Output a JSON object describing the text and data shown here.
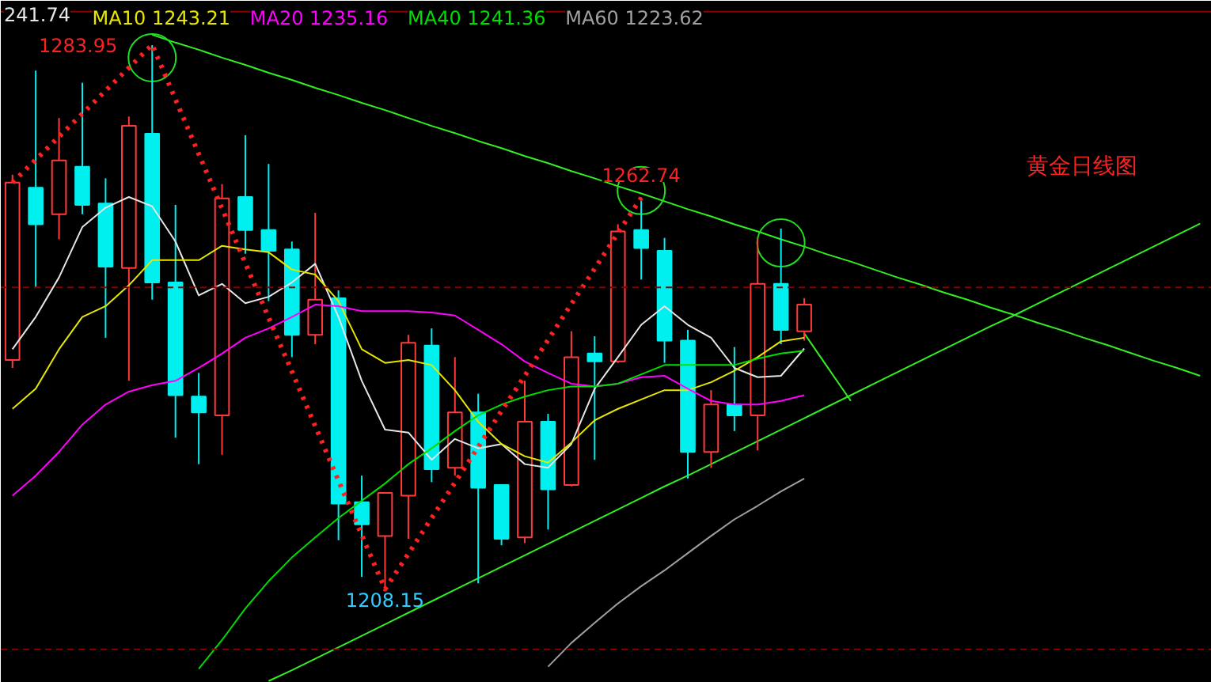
{
  "chart_data": {
    "type": "candlestick",
    "title": "黄金日线图",
    "categories": [
      null,
      null,
      null,
      null,
      null,
      null,
      null,
      null,
      null,
      null,
      null,
      null,
      null,
      null,
      null,
      null,
      null,
      null,
      null,
      null,
      null,
      null,
      null,
      null,
      null,
      null,
      null,
      null,
      null,
      null,
      null,
      null,
      null,
      null,
      null,
      null,
      null,
      null,
      null,
      null,
      null,
      null,
      null,
      null,
      null,
      null,
      null,
      null,
      null,
      null,
      null,
      null
    ],
    "ohlc": [
      [
        1240.1,
        1265.9,
        1239.0,
        1264.8
      ],
      [
        1264.1,
        1280.4,
        1250.2,
        1259.0
      ],
      [
        1260.4,
        1273.8,
        1256.9,
        1267.9
      ],
      [
        1267.0,
        1278.7,
        1260.4,
        1261.7
      ],
      [
        1261.9,
        1265.4,
        1243.2,
        1253.1
      ],
      [
        1252.9,
        1274.0,
        1237.2,
        1272.7
      ],
      [
        1271.6,
        1283.95,
        1248.5,
        1250.9
      ],
      [
        1250.9,
        1261.7,
        1229.3,
        1235.2
      ],
      [
        1235.0,
        1238.3,
        1225.6,
        1232.8
      ],
      [
        1232.4,
        1264.6,
        1226.9,
        1262.6
      ],
      [
        1262.8,
        1271.4,
        1254.9,
        1258.2
      ],
      [
        1258.2,
        1267.4,
        1248.3,
        1255.3
      ],
      [
        1255.5,
        1256.6,
        1240.5,
        1243.6
      ],
      [
        1243.6,
        1260.6,
        1242.3,
        1248.5
      ],
      [
        1248.7,
        1249.8,
        1215.0,
        1220.1
      ],
      [
        1220.3,
        1224.0,
        1209.9,
        1217.2
      ],
      [
        1215.6,
        1221.6,
        1208.15,
        1221.6
      ],
      [
        1221.2,
        1243.6,
        1215.2,
        1242.5
      ],
      [
        1242.1,
        1244.5,
        1223.1,
        1224.9
      ],
      [
        1225.1,
        1240.5,
        1224.0,
        1232.8
      ],
      [
        1232.8,
        1235.4,
        1209.0,
        1222.3
      ],
      [
        1222.7,
        1222.7,
        1214.3,
        1215.2
      ],
      [
        1215.4,
        1237.2,
        1214.6,
        1231.5
      ],
      [
        1231.5,
        1232.6,
        1216.5,
        1222.1
      ],
      [
        1222.7,
        1244.1,
        1222.5,
        1240.5
      ],
      [
        1241.0,
        1243.4,
        1226.2,
        1239.9
      ],
      [
        1239.9,
        1259.0,
        1239.7,
        1258.0
      ],
      [
        1258.2,
        1262.74,
        1251.3,
        1255.7
      ],
      [
        1255.3,
        1257.1,
        1239.7,
        1242.8
      ],
      [
        1242.8,
        1244.3,
        1223.6,
        1227.3
      ],
      [
        1227.3,
        1235.9,
        1225.1,
        1233.9
      ],
      [
        1233.9,
        1241.9,
        1230.2,
        1232.4
      ],
      [
        1232.4,
        1257.1,
        1227.5,
        1250.7
      ],
      [
        1250.7,
        1258.4,
        1242.3,
        1244.3
      ],
      [
        1244.1,
        1248.7,
        1242.8,
        1247.8
      ],
      null,
      null,
      null,
      null,
      null,
      null,
      null,
      null,
      null,
      null,
      null,
      null,
      null,
      null,
      null,
      null,
      null
    ],
    "colors": [
      "#ff3a3a",
      "#00f0f0",
      "#ff3a3a",
      "#00f0f0",
      "#00f0f0",
      "#ff3a3a",
      "#00f0f0",
      "#00f0f0",
      "#00f0f0",
      "#ff3a3a",
      "#00f0f0",
      "#00f0f0",
      "#00f0f0",
      "#ff3a3a",
      "#00f0f0",
      "#00f0f0",
      "#ff3a3a",
      "#ff3a3a",
      "#00f0f0",
      "#ff3a3a",
      "#00f0f0",
      "#00f0f0",
      "#ff3a3a",
      "#00f0f0",
      "#ff3a3a",
      "#00f0f0",
      "#ff3a3a",
      "#00f0f0",
      "#00f0f0",
      "#00f0f0",
      "#ff3a3a",
      "#00f0f0",
      "#ff3a3a",
      "#00f0f0",
      "#ff3a3a",
      null,
      null,
      null,
      null,
      null,
      null,
      null,
      null,
      null,
      null,
      null,
      null,
      null,
      null,
      null,
      null,
      null
    ],
    "ylim": [
      1195.15,
      1290.12
    ],
    "tick_labels": false,
    "grid": false,
    "legend": "top left",
    "series": [
      {
        "name": "241.74",
        "type": "line",
        "color": "#e6e6e6",
        "values": [
          1241.6,
          1246.1,
          1251.6,
          1258.6,
          1261.3,
          1262.8,
          1261.5,
          1256.6,
          1249.1,
          1250.7,
          1248.0,
          1248.9,
          1250.9,
          1253.5,
          1246.1,
          1237.2,
          1230.4,
          1230.0,
          1226.2,
          1229.1,
          1227.8,
          1228.4,
          1225.6,
          1225.1,
          1228.4,
          1236.1,
          1240.5,
          1245.0,
          1247.6,
          1245.0,
          1243.2,
          1239.0,
          1237.7,
          1237.9,
          1241.7,
          null,
          null,
          null,
          null,
          null,
          null,
          null,
          null,
          null,
          null,
          null,
          null,
          null,
          null,
          null,
          null,
          null
        ]
      },
      {
        "name": "MA10 1243.21",
        "type": "line",
        "color": "#e6e600",
        "values": [
          1233.3,
          1236.1,
          1241.6,
          1246.1,
          1247.6,
          1250.5,
          1254.0,
          1254.0,
          1254.0,
          1256.0,
          1255.5,
          1255.1,
          1252.7,
          1252.0,
          1248.3,
          1241.6,
          1239.7,
          1240.1,
          1239.4,
          1235.9,
          1231.5,
          1228.4,
          1226.7,
          1225.8,
          1228.6,
          1231.7,
          1233.3,
          1234.6,
          1235.9,
          1235.9,
          1237.0,
          1238.6,
          1240.5,
          1242.7,
          1243.2,
          null,
          null,
          null,
          null,
          null,
          null,
          null,
          null,
          null,
          null,
          null,
          null,
          null,
          null,
          null,
          null,
          null
        ]
      },
      {
        "name": "MA20 1235.16",
        "type": "line",
        "color": "#ff00ff",
        "values": [
          1221.2,
          1224.0,
          1227.3,
          1231.1,
          1233.9,
          1235.7,
          1236.6,
          1237.2,
          1239.0,
          1241.0,
          1243.2,
          1244.5,
          1246.1,
          1247.8,
          1247.6,
          1246.9,
          1246.9,
          1246.9,
          1246.7,
          1246.3,
          1244.3,
          1242.3,
          1239.9,
          1238.3,
          1236.8,
          1236.4,
          1236.8,
          1237.7,
          1237.9,
          1236.1,
          1234.4,
          1233.9,
          1233.9,
          1234.4,
          1235.2,
          null,
          null,
          null,
          null,
          null,
          null,
          null,
          null,
          null,
          null,
          null,
          null,
          null,
          null,
          null,
          null,
          null
        ]
      },
      {
        "name": "MA40 1241.36",
        "type": "line",
        "color": "#00dd00",
        "values": [
          null,
          null,
          null,
          null,
          null,
          null,
          null,
          null,
          1197.1,
          1201.1,
          1205.5,
          1209.3,
          1212.6,
          1215.4,
          1218.1,
          1220.5,
          1222.9,
          1225.6,
          1227.8,
          1230.2,
          1232.4,
          1233.9,
          1235.0,
          1235.9,
          1236.4,
          1236.4,
          1236.8,
          1238.1,
          1239.4,
          1239.4,
          1239.4,
          1239.4,
          1240.3,
          1241.0,
          1241.4,
          null,
          null,
          null,
          null,
          null,
          null,
          null,
          null,
          null,
          null,
          null,
          null,
          null,
          null,
          null,
          null,
          null
        ]
      },
      {
        "name": "MA60 1223.62",
        "type": "line",
        "color": "#a0a0a0",
        "values": [
          null,
          null,
          null,
          null,
          null,
          null,
          null,
          null,
          null,
          null,
          null,
          null,
          null,
          null,
          null,
          null,
          null,
          null,
          null,
          null,
          null,
          null,
          null,
          1197.4,
          1200.7,
          1203.5,
          1206.2,
          1208.6,
          1210.8,
          1213.2,
          1215.6,
          1217.9,
          1219.8,
          1221.8,
          1223.6,
          null,
          null,
          null,
          null,
          null,
          null,
          null,
          null,
          null,
          null,
          null,
          null,
          null,
          null,
          null,
          null,
          null
        ]
      },
      {
        "type": "line",
        "color": "#33ee22",
        "values": [
          null,
          null,
          null,
          null,
          null,
          null,
          1285.4,
          1284.3,
          1283.3,
          1282.2,
          1281.2,
          1280.1,
          1279.1,
          1278.0,
          1277.0,
          1275.9,
          1274.9,
          1273.8,
          1272.7,
          1271.7,
          1270.6,
          1269.6,
          1268.5,
          1267.5,
          1266.4,
          1265.4,
          1264.3,
          1263.3,
          1262.2,
          1261.1,
          1260.1,
          1259.0,
          1258.0,
          1256.9,
          1255.9,
          1254.8,
          1253.8,
          1252.7,
          1251.6,
          1250.6,
          1249.5,
          1248.5,
          1247.4,
          1246.4,
          1245.3,
          1244.3,
          1243.2,
          1242.2,
          1241.1,
          1240.0,
          1239.0,
          1237.9
        ]
      },
      {
        "type": "line",
        "color": "#33ee22",
        "values": [
          null,
          null,
          null,
          null,
          null,
          null,
          null,
          null,
          null,
          null,
          null,
          1195.4,
          1196.9,
          1198.5,
          1200.1,
          1201.7,
          1203.3,
          1204.9,
          1206.5,
          1208.1,
          1209.7,
          1211.3,
          1212.9,
          1214.5,
          1216.1,
          1217.7,
          1219.3,
          1220.9,
          1222.5,
          1224.0,
          1225.6,
          1227.2,
          1228.8,
          1230.4,
          1232.0,
          1233.6,
          1235.2,
          1236.8,
          1238.4,
          1240.0,
          1241.6,
          1243.2,
          1244.8,
          1246.3,
          1247.9,
          1249.5,
          1251.1,
          1252.7,
          1254.3,
          1255.9,
          1257.5,
          1259.1
        ]
      },
      {
        "type": "line",
        "color": "#33ee22",
        "values": [
          null,
          null,
          null,
          null,
          null,
          null,
          null,
          null,
          null,
          null,
          null,
          null,
          null,
          null,
          null,
          null,
          null,
          null,
          null,
          null,
          null,
          null,
          null,
          null,
          null,
          null,
          null,
          null,
          null,
          null,
          null,
          null,
          null,
          null,
          1243.8,
          1239.1,
          1234.4,
          null,
          null,
          null,
          null,
          null,
          null,
          null,
          null,
          null,
          null,
          null,
          null,
          null,
          null,
          null
        ]
      },
      {
        "type": "line",
        "color": "#ff2020",
        "line_style": "dotted",
        "values": [
          1264.8,
          1268.0,
          1271.2,
          1274.4,
          1277.6,
          1280.8,
          1284.0,
          1276.4,
          1268.8,
          1261.2,
          1253.6,
          1246.0,
          1238.5,
          1230.9,
          1223.3,
          1215.7,
          1208.2,
          1213.1,
          1218.1,
          1223.0,
          1228.0,
          1233.0,
          1237.9,
          1242.9,
          1247.9,
          1252.8,
          1257.8,
          1262.7,
          null,
          null,
          null,
          null,
          null,
          null,
          null,
          null,
          null,
          null,
          null,
          null,
          null,
          null,
          null,
          null,
          null,
          null,
          null,
          null,
          null,
          null,
          null,
          null
        ]
      },
      {
        "type": "scatter",
        "marker": "circle",
        "color": "#22dd22",
        "values": [
          null,
          null,
          null,
          null,
          null,
          null,
          1282.2,
          null,
          null,
          null,
          null,
          null,
          null,
          null,
          null,
          null,
          null,
          null,
          null,
          null,
          null,
          null,
          null,
          null,
          null,
          null,
          null,
          1263.7,
          null,
          null,
          null,
          null,
          null,
          1256.4,
          null,
          null,
          null,
          null,
          null,
          null,
          null,
          null,
          null,
          null,
          null,
          null,
          null,
          null,
          null,
          null,
          null,
          null
        ]
      }
    ],
    "ref_lines": [
      {
        "axis": "y",
        "value": 1250.2,
        "color": "#8b0000",
        "line_style": "dashed"
      },
      {
        "axis": "y",
        "value": 1199.8,
        "color": "#8b0000",
        "line_style": "dashed"
      },
      {
        "axis": "y",
        "value": 1288.6,
        "color": "#8b0000",
        "line_style": "solid"
      }
    ],
    "annotations": [
      "1283.95",
      "1208.15",
      "1262.74"
    ]
  }
}
